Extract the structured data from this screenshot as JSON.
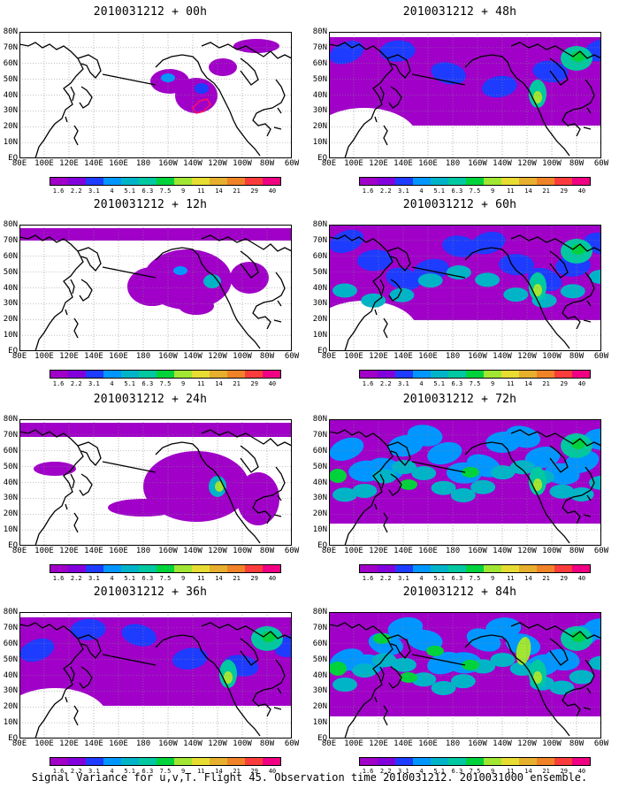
{
  "caption": "Signal Variance for u,v,T. Flight 45. Observation time 2010031212. 2010031000 ensemble.",
  "lat_labels": [
    "80N",
    "70N",
    "60N",
    "50N",
    "40N",
    "30N",
    "20N",
    "10N",
    "EQ"
  ],
  "lon_labels": [
    "80E",
    "100E",
    "120E",
    "140E",
    "160E",
    "180",
    "160W",
    "140W",
    "120W",
    "100W",
    "80W",
    "60W"
  ],
  "colorbar": {
    "labels": [
      "1.6",
      "2.2",
      "3.1",
      "4",
      "5.1",
      "6.3",
      "7.5",
      "9",
      "11",
      "14",
      "21",
      "29",
      "40"
    ],
    "colors": [
      "#a000c8",
      "#8200dc",
      "#1e3cff",
      "#0096ff",
      "#00b4c8",
      "#00c8a0",
      "#00d23c",
      "#a0e632",
      "#e6dc32",
      "#e6af2d",
      "#f08228",
      "#fa3c3c",
      "#f00082"
    ]
  },
  "panels": [
    {
      "title": "2010031212 + 00h",
      "col": 0,
      "row": 0,
      "level": 0
    },
    {
      "title": "2010031212 + 12h",
      "col": 0,
      "row": 1,
      "level": 1
    },
    {
      "title": "2010031212 + 24h",
      "col": 0,
      "row": 2,
      "level": 2
    },
    {
      "title": "2010031212 + 36h",
      "col": 0,
      "row": 3,
      "level": 3
    },
    {
      "title": "2010031212 + 48h",
      "col": 1,
      "row": 0,
      "level": 4
    },
    {
      "title": "2010031212 + 60h",
      "col": 1,
      "row": 1,
      "level": 5
    },
    {
      "title": "2010031212 + 72h",
      "col": 1,
      "row": 2,
      "level": 6
    },
    {
      "title": "2010031212 + 84h",
      "col": 1,
      "row": 3,
      "level": 7
    }
  ]
}
